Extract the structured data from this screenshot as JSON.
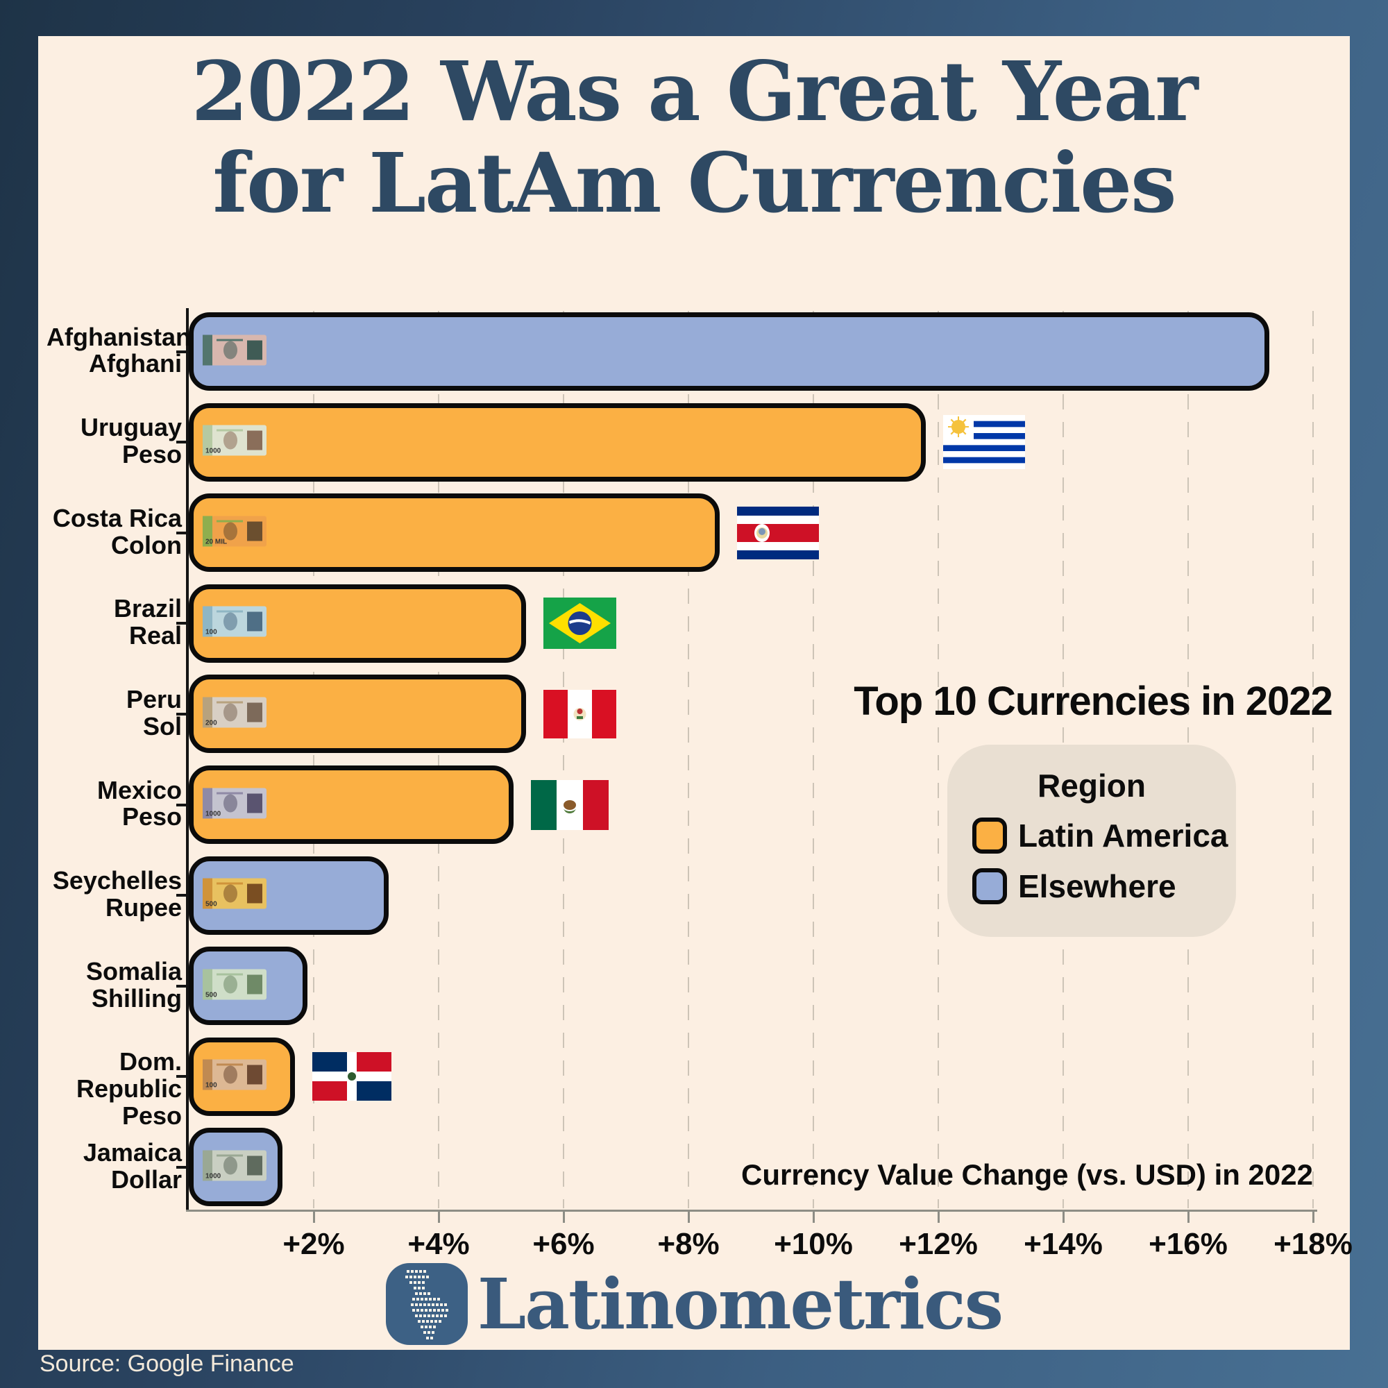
{
  "title": {
    "line1": "2022 Was a Great Year",
    "line2": "for LatAm Currencies"
  },
  "chart_data": {
    "type": "bar",
    "orientation": "horizontal",
    "annotation_title": "Top 10 Currencies in 2022",
    "xlabel": "Currency Value Change (vs. USD) in 2022",
    "xlim": [
      0,
      18
    ],
    "x_ticks": [
      {
        "value": 2,
        "label": "+2%"
      },
      {
        "value": 4,
        "label": "+4%"
      },
      {
        "value": 6,
        "label": "+6%"
      },
      {
        "value": 8,
        "label": "+8%"
      },
      {
        "value": 10,
        "label": "+10%"
      },
      {
        "value": 12,
        "label": "+12%"
      },
      {
        "value": 14,
        "label": "+14%"
      },
      {
        "value": 16,
        "label": "+16%"
      },
      {
        "value": 18,
        "label": "+18%"
      }
    ],
    "grid": "vertical-dashed",
    "legend": {
      "title": "Region",
      "position": "right-middle",
      "items": [
        {
          "label": "Latin America",
          "color": "#FBB044"
        },
        {
          "label": "Elsewhere",
          "color": "#97ACD7"
        }
      ]
    },
    "categories": [
      "Afghanistan Afghani",
      "Uruguay Peso",
      "Costa Rica Colon",
      "Brazil Real",
      "Peru Sol",
      "Mexico Peso",
      "Seychelles Rupee",
      "Somalia Shilling",
      "Dom. Republic Peso",
      "Jamaica Dollar"
    ],
    "series": [
      {
        "name": "Currency value change vs USD in 2022 (%)",
        "values": [
          17.3,
          11.8,
          8.5,
          5.4,
          5.4,
          5.2,
          3.2,
          1.9,
          1.7,
          1.5
        ]
      }
    ],
    "bars": [
      {
        "label_line1": "Afghanistan",
        "label_line2": "Afghani",
        "value_pct": 17.3,
        "region": "Elsewhere",
        "flag": null,
        "note": {
          "denom": "",
          "c1": "#d8b7ae",
          "c2": "#53756d",
          "c3": "#3f5b55"
        }
      },
      {
        "label_line1": "Uruguay",
        "label_line2": "Peso",
        "value_pct": 11.8,
        "region": "Latin America",
        "flag": "uruguay",
        "note": {
          "denom": "1000",
          "c1": "#dfe3cf",
          "c2": "#b5c9a2",
          "c3": "#8a6e5a"
        }
      },
      {
        "label_line1": "Costa Rica",
        "label_line2": "Colon",
        "value_pct": 8.5,
        "region": "Latin America",
        "flag": "costa-rica",
        "note": {
          "denom": "20 MIL",
          "c1": "#f0a24a",
          "c2": "#8fae4e",
          "c3": "#6b4f2f"
        }
      },
      {
        "label_line1": "Brazil",
        "label_line2": "Real",
        "value_pct": 5.4,
        "region": "Latin America",
        "flag": "brazil",
        "note": {
          "denom": "100",
          "c1": "#bcd6dd",
          "c2": "#8fb6c4",
          "c3": "#4f6f86"
        }
      },
      {
        "label_line1": "Peru",
        "label_line2": "Sol",
        "value_pct": 5.4,
        "region": "Latin America",
        "flag": "peru",
        "note": {
          "denom": "200",
          "c1": "#d8cfc4",
          "c2": "#b7a27e",
          "c3": "#7d6a5a"
        }
      },
      {
        "label_line1": "Mexico",
        "label_line2": "Peso",
        "value_pct": 5.2,
        "region": "Latin America",
        "flag": "mexico",
        "note": {
          "denom": "1000",
          "c1": "#c4c3cf",
          "c2": "#8f8aa6",
          "c3": "#5a5470"
        }
      },
      {
        "label_line1": "Seychelles",
        "label_line2": "Rupee",
        "value_pct": 3.2,
        "region": "Elsewhere",
        "flag": null,
        "note": {
          "denom": "500",
          "c1": "#e8c160",
          "c2": "#d0933a",
          "c3": "#7a4e22"
        }
      },
      {
        "label_line1": "Somalia",
        "label_line2": "Shilling",
        "value_pct": 1.9,
        "region": "Elsewhere",
        "flag": null,
        "note": {
          "denom": "500",
          "c1": "#cfdec8",
          "c2": "#a8c29e",
          "c3": "#6f8a67"
        }
      },
      {
        "label_line1": "Dom. Republic",
        "label_line2": "Peso",
        "value_pct": 1.7,
        "region": "Latin America",
        "flag": "dominican-republic",
        "note": {
          "denom": "100",
          "c1": "#ddb894",
          "c2": "#c08a52",
          "c3": "#6e4a33"
        }
      },
      {
        "label_line1": "Jamaica",
        "label_line2": "Dollar",
        "value_pct": 1.5,
        "region": "Elsewhere",
        "flag": null,
        "note": {
          "denom": "1000",
          "c1": "#c9cfc2",
          "c2": "#9aa894",
          "c3": "#5f6b5e"
        }
      }
    ]
  },
  "colors": {
    "latin_america_bar": "#FBB044",
    "elsewhere_bar": "#97ACD7",
    "bar_outline": "#0b0b0b",
    "background_cream": "#fcefe2",
    "frame_blue_dark": "#1e3347",
    "frame_blue_light": "#487093",
    "title_navy": "#2e4963",
    "legend_box": "#e9dfd2",
    "gridline": "#cdc4b7"
  },
  "footer": {
    "brand": "Latinometrics"
  },
  "source": "Source: Google Finance"
}
